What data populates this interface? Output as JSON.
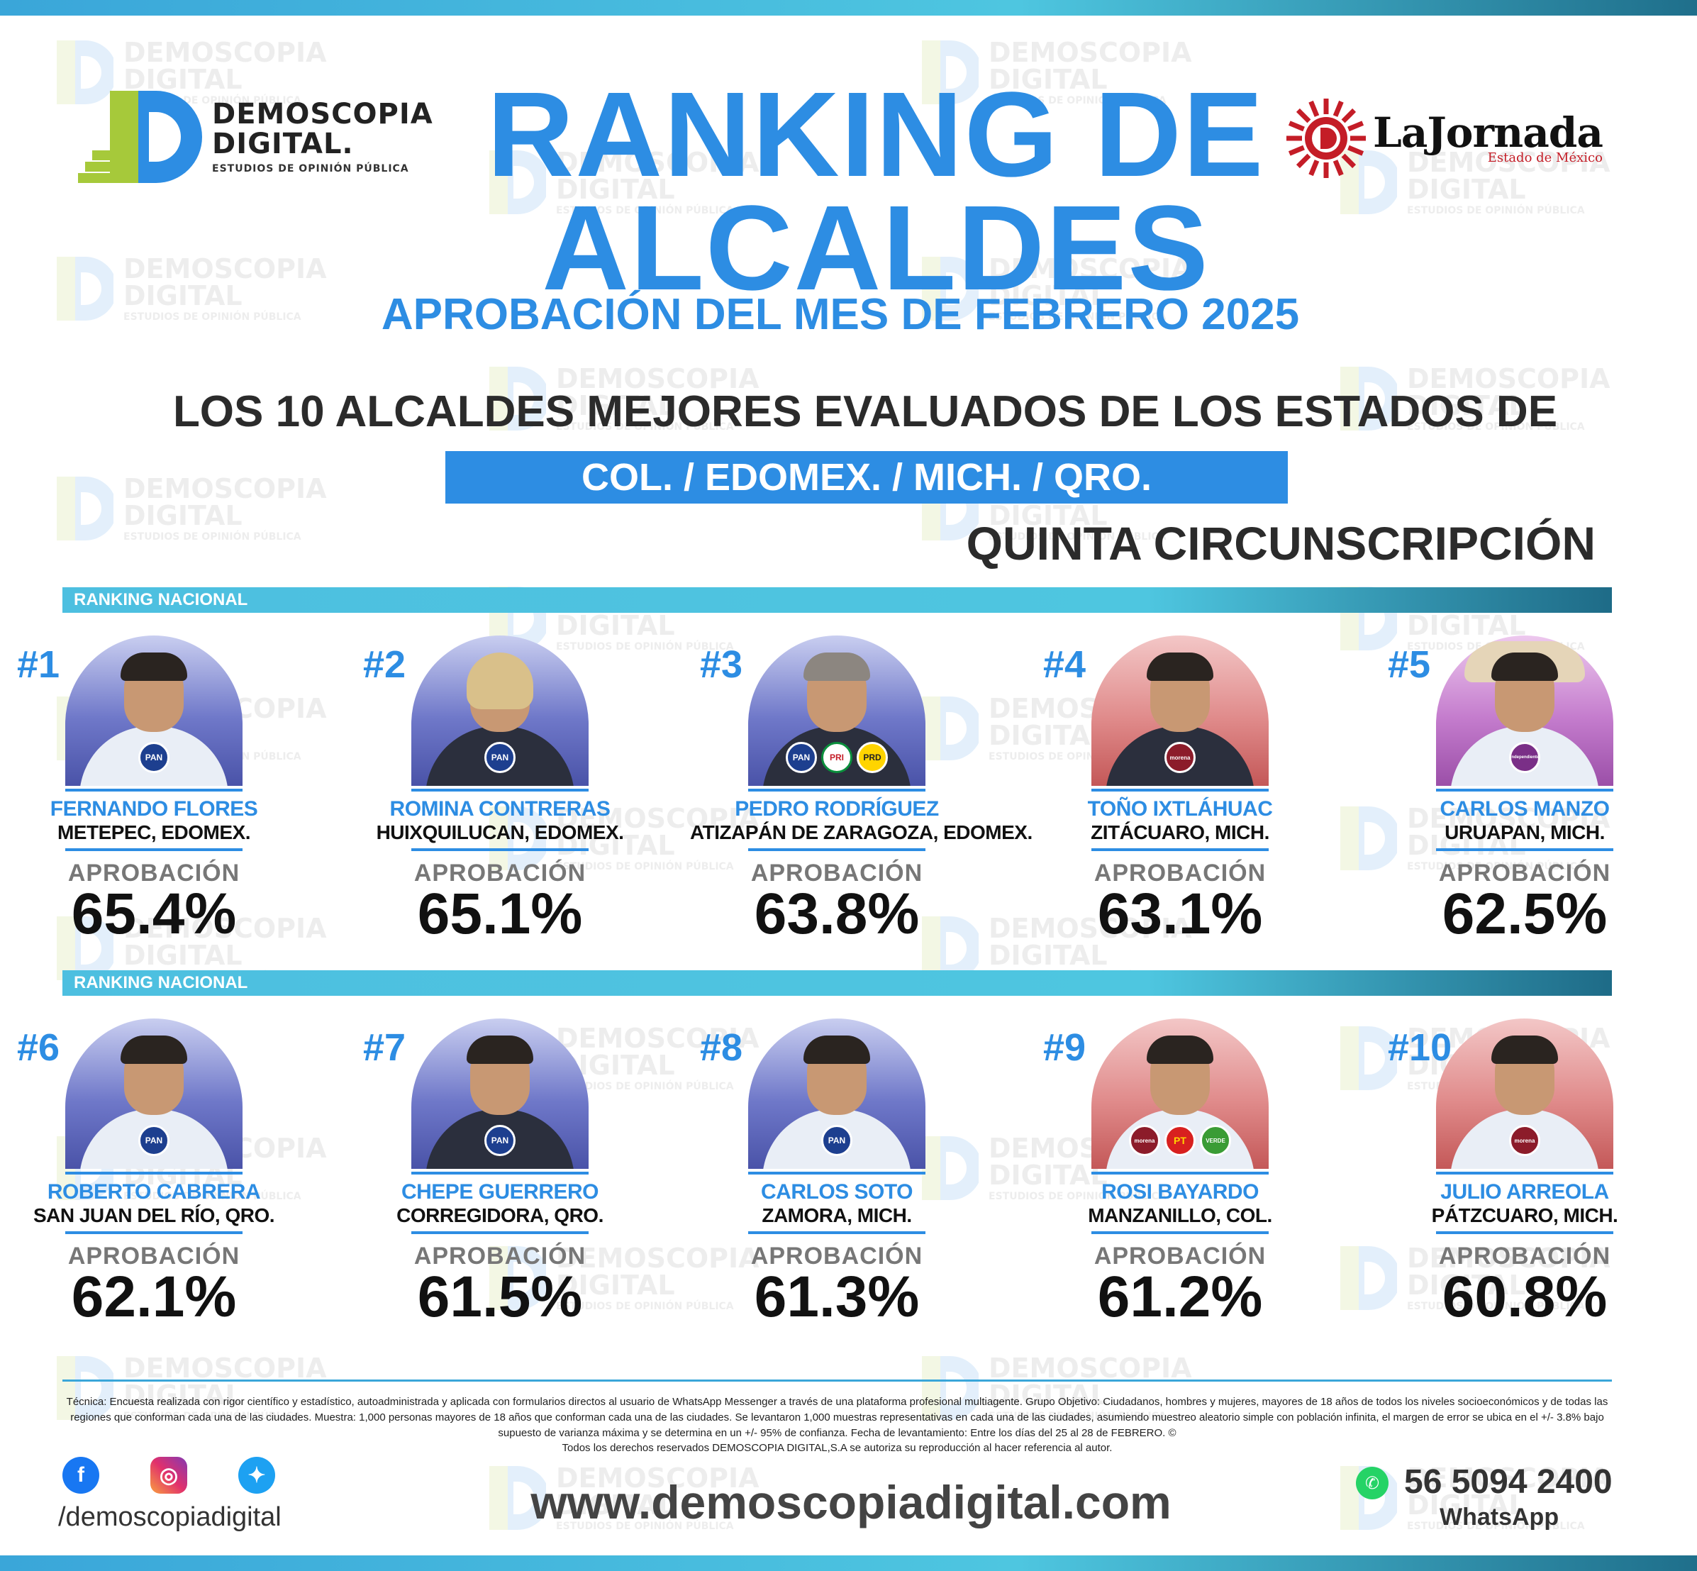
{
  "header": {
    "logo_left": {
      "line1": "DEMOSCOPIA",
      "line2": "DIGITAL.",
      "line3": "ESTUDIOS DE OPINIÓN PÚBLICA"
    },
    "logo_right": {
      "name": "LaJornada",
      "region": "Estado de México"
    },
    "title_line1": "RANKING DE",
    "title_line2": "ALCALDES",
    "subtitle": "APROBACIÓN DEL MES DE FEBRERO 2025",
    "heading": "LOS 10 ALCALDES MEJORES EVALUADOS DE LOS ESTADOS DE",
    "states": "COL. /  EDOMEX.  /  MICH.  /  QRO.",
    "circunscripcion": "QUINTA CIRCUNSCRIPCIÓN"
  },
  "watermark": {
    "line1": "DEMOSCOPIA",
    "line2": "DIGITAL",
    "line3": "ESTUDIOS DE OPINIÓN PÚBLICA"
  },
  "rank_bar_label": "RANKING NACIONAL",
  "approval_label": "APROBACIÓN",
  "mayors": [
    {
      "rank": "#1",
      "name": "FERNANDO FLORES",
      "city": "METEPEC, EDOMEX.",
      "approval": "65.4%",
      "parties": [
        "PAN"
      ],
      "bg": "blue"
    },
    {
      "rank": "#2",
      "name": "ROMINA CONTRERAS",
      "city": "HUIXQUILUCAN, EDOMEX.",
      "approval": "65.1%",
      "parties": [
        "PAN"
      ],
      "bg": "blue"
    },
    {
      "rank": "#3",
      "name": "PEDRO RODRÍGUEZ",
      "city": "ATIZAPÁN DE ZARAGOZA, EDOMEX.",
      "approval": "63.8%",
      "parties": [
        "PAN",
        "PRI",
        "PRD"
      ],
      "bg": "blue"
    },
    {
      "rank": "#4",
      "name": "TOÑO IXTLÁHUAC",
      "city": "ZITÁCUARO, MICH.",
      "approval": "63.1%",
      "parties": [
        "morena"
      ],
      "bg": "red"
    },
    {
      "rank": "#5",
      "name": "CARLOS MANZO",
      "city": "URUAPAN, MICH.",
      "approval": "62.5%",
      "parties": [
        "independiente"
      ],
      "bg": "purple"
    },
    {
      "rank": "#6",
      "name": "ROBERTO CABRERA",
      "city": "SAN JUAN DEL RÍO, QRO.",
      "approval": "62.1%",
      "parties": [
        "PAN"
      ],
      "bg": "blue"
    },
    {
      "rank": "#7",
      "name": "CHEPE GUERRERO",
      "city": "CORREGIDORA, QRO.",
      "approval": "61.5%",
      "parties": [
        "PAN"
      ],
      "bg": "blue"
    },
    {
      "rank": "#8",
      "name": "CARLOS SOTO",
      "city": "ZAMORA, MICH.",
      "approval": "61.3%",
      "parties": [
        "PAN"
      ],
      "bg": "blue"
    },
    {
      "rank": "#9",
      "name": "ROSI BAYARDO",
      "city": "MANZANILLO, COL.",
      "approval": "61.2%",
      "parties": [
        "morena",
        "PT",
        "VERDE"
      ],
      "bg": "red"
    },
    {
      "rank": "#10",
      "name": "JULIO ARREOLA",
      "city": "PÁTZCUARO, MICH.",
      "approval": "60.8%",
      "parties": [
        "morena"
      ],
      "bg": "red"
    }
  ],
  "footer": {
    "tecnica": "Técnica: Encuesta realizada con rigor científico y estadístico, autoadministrada y aplicada con formularios directos al usuario de WhatsApp Messenger a través de una plataforma profesional multiagente. Grupo Objetivo: Ciudadanos, hombres y mujeres, mayores de 18 años de todos los niveles socioeconómicos y de todas las regiones que conforman cada una de las ciudades. Muestra: 1,000 personas mayores de 18 años que conforman cada una de las ciudades. Se levantaron 1,000 muestras representativas en cada una de las ciudades, asumiendo muestreo aleatorio simple con población infinita, el margen de error se ubica en el +/- 3.8% bajo supuesto de varianza máxima y se determina en un +/- 95% de confianza. Fecha de levantamiento: Entre los días del 25 al 28 de FEBRERO. ©",
    "derechos": "Todos los derechos reservados DEMOSCOPIA DIGITAL,S.A se autoriza su reproducción al hacer referencia al autor.",
    "social_icons": [
      "facebook-icon",
      "instagram-icon",
      "twitter-icon"
    ],
    "handle": "/demoscopiadigital",
    "website": "www.demoscopiadigital.com",
    "phone": "56 5094 2400",
    "whatsapp_label": "WhatsApp"
  },
  "colors": {
    "accent": "#2d8de3",
    "bar": "#4ec6e0",
    "text_dark": "#2b2b2b"
  }
}
